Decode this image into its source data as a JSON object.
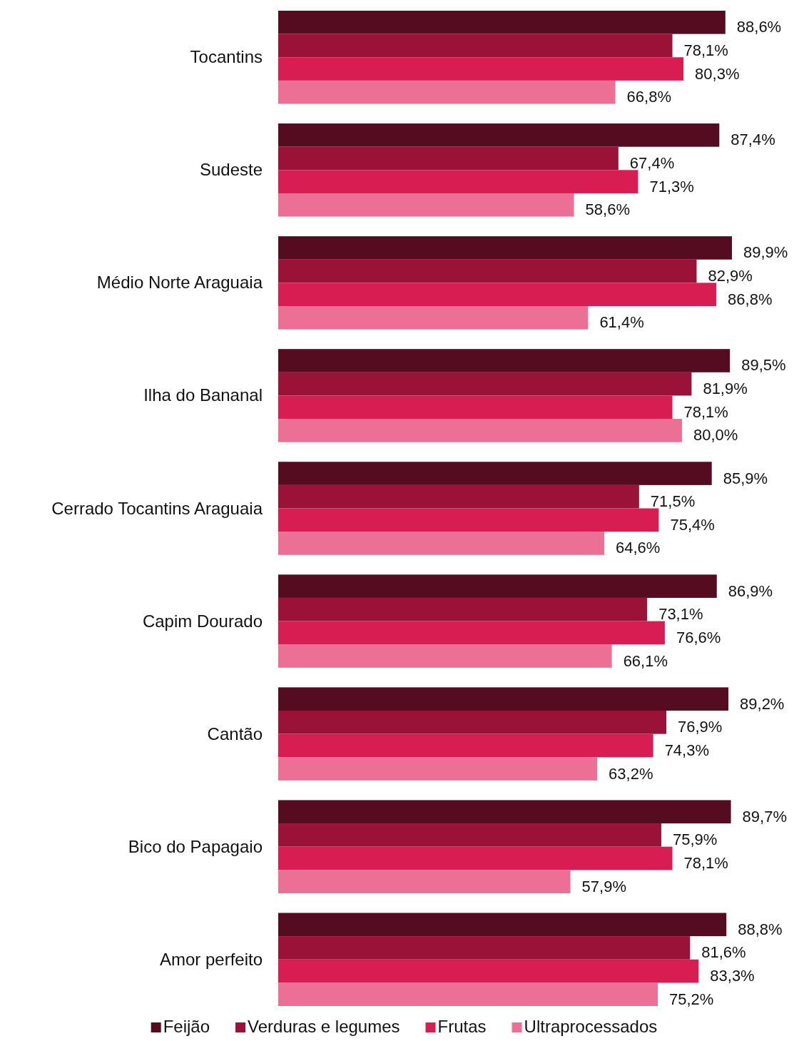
{
  "chart_data": {
    "type": "bar",
    "orientation": "horizontal",
    "categories": [
      "Tocantins",
      "Sudeste",
      "Médio Norte Araguaia",
      "Ilha do Bananal",
      "Cerrado Tocantins Araguaia",
      "Capim Dourado",
      "Cantão",
      "Bico do Papagaio",
      "Amor perfeito"
    ],
    "tick_labels": "y",
    "legend": "bottom",
    "series": [
      {
        "name": "Feijão",
        "color": "#560c20",
        "values": [
          88.6,
          87.4,
          89.9,
          89.5,
          85.9,
          86.9,
          89.2,
          89.7,
          88.8
        ],
        "value_labels": [
          "88,6%",
          "87,4%",
          "89,9%",
          "89,5%",
          "85,9%",
          "86,9%",
          "89,2%",
          "89,7%",
          "88,8%"
        ]
      },
      {
        "name": "Verduras e legumes",
        "color": "#9a1238",
        "values": [
          78.1,
          67.4,
          82.9,
          81.9,
          71.5,
          73.1,
          76.9,
          75.9,
          81.6
        ],
        "value_labels": [
          "78,1%",
          "67,4%",
          "82,9%",
          "81,9%",
          "71,5%",
          "73,1%",
          "76,9%",
          "75,9%",
          "81,6%"
        ]
      },
      {
        "name": "Frutas",
        "color": "#d81d52",
        "values": [
          80.3,
          71.3,
          86.8,
          78.1,
          75.4,
          76.6,
          74.3,
          78.1,
          83.3
        ],
        "value_labels": [
          "80,3%",
          "71,3%",
          "86,8%",
          "78,1%",
          "75,4%",
          "76,6%",
          "74,3%",
          "78,1%",
          "83,3%"
        ]
      },
      {
        "name": "Ultraprocessados",
        "color": "#ec7095",
        "values": [
          66.8,
          58.6,
          61.4,
          80.0,
          64.6,
          66.1,
          63.2,
          57.9,
          75.2
        ],
        "value_labels": [
          "66,8%",
          "58,6%",
          "61,4%",
          "80,0%",
          "64,6%",
          "66,1%",
          "63,2%",
          "57,9%",
          "75,2%"
        ]
      }
    ]
  }
}
